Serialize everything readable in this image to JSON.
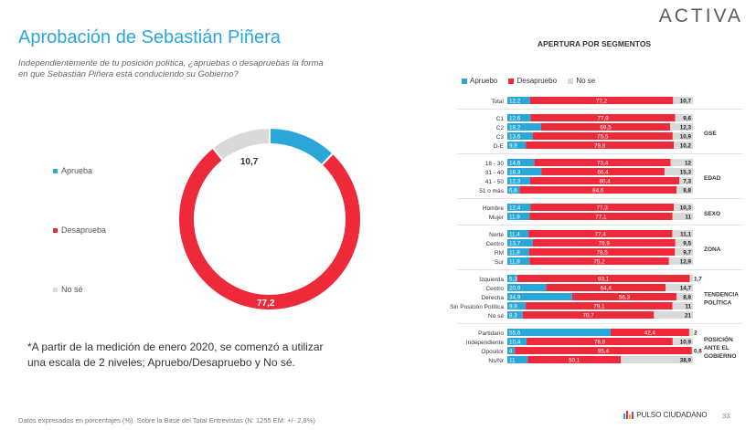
{
  "brand": "ACTIVA",
  "title": "Aprobación de Sebastián Piñera",
  "subtitle": "Independientemente de tu posición política, ¿apruebas o desapruebas la forma en que Sebastián Piñera está conduciendo su Gobierno?",
  "note": "*A partir de la medición de enero 2020, se comenzó a utilizar una escala de 2 niveles; Apruebo/Desapruebo y No sé.",
  "footer_note": "Datos expresados en porcentajes (%). Sobre la Base del Total Entrevistas (N: 1255  EM: +/- 2,8%)",
  "pulso_label": "PULSO CIUDADANO",
  "page_number": "33",
  "colors": {
    "approve": "#2aa7d8",
    "disapprove": "#ee2a3a",
    "nose": "#d9d9d9",
    "title": "#2aa7d8"
  },
  "chart_data": [
    {
      "type": "pie",
      "donut": true,
      "legend": [
        "Aprueba",
        "Desaprueba",
        "No sé"
      ],
      "values": [
        12.2,
        77.2,
        10.7
      ],
      "labels": [
        "12,2",
        "77,2",
        "10,7"
      ]
    },
    {
      "type": "bar",
      "stacked": true,
      "orientation": "horizontal",
      "title": "APERTURA POR SEGMENTOS",
      "legend": [
        "Apruebo",
        "Desapruebo",
        "No se"
      ],
      "groups": [
        {
          "name": "",
          "rows": [
            {
              "label": "Total",
              "values": [
                12.2,
                77.2,
                10.7
              ],
              "text": [
                "12,2",
                "77,2",
                "10,7"
              ]
            }
          ]
        },
        {
          "name": "GSE",
          "rows": [
            {
              "label": "C1",
              "values": [
                12.6,
                77.9,
                9.6
              ],
              "text": [
                "12,6",
                "77,9",
                "9,6"
              ]
            },
            {
              "label": "C2",
              "values": [
                18.2,
                69.5,
                12.3
              ],
              "text": [
                "18,2",
                "69,5",
                "12,3"
              ]
            },
            {
              "label": "C3",
              "values": [
                13.6,
                75.5,
                10.9
              ],
              "text": [
                "13,6",
                "75,5",
                "10,9"
              ]
            },
            {
              "label": "D-E",
              "values": [
                9.9,
                79.8,
                10.2
              ],
              "text": [
                "9,9",
                "79,8",
                "10,2"
              ]
            }
          ]
        },
        {
          "name": "EDAD",
          "rows": [
            {
              "label": "18 - 30",
              "values": [
                14.6,
                73.4,
                12
              ],
              "text": [
                "14,6",
                "73,4",
                "12"
              ]
            },
            {
              "label": "31 - 40",
              "values": [
                18.3,
                66.4,
                15.3
              ],
              "text": [
                "18,3",
                "66,4",
                "15,3"
              ]
            },
            {
              "label": "41 - 50",
              "values": [
                12.3,
                80.4,
                7.3
              ],
              "text": [
                "12,3",
                "80,4",
                "7,3"
              ]
            },
            {
              "label": "51 o más",
              "values": [
                6.6,
                84.6,
                8.8
              ],
              "text": [
                "6,6",
                "84,6",
                "8,8"
              ]
            }
          ]
        },
        {
          "name": "SEXO",
          "rows": [
            {
              "label": "Hombre",
              "values": [
                12.4,
                77.3,
                10.3
              ],
              "text": [
                "12,4",
                "77,3",
                "10,3"
              ]
            },
            {
              "label": "Mujer",
              "values": [
                11.9,
                77.1,
                11
              ],
              "text": [
                "11,9",
                "77,1",
                "11"
              ]
            }
          ]
        },
        {
          "name": "ZONA",
          "rows": [
            {
              "label": "Norte",
              "values": [
                11.4,
                77.4,
                11.1
              ],
              "text": [
                "11,4",
                "77,4",
                "11,1"
              ]
            },
            {
              "label": "Centro",
              "values": [
                13.7,
                76.9,
                9.5
              ],
              "text": [
                "13,7",
                "76,9",
                "9,5"
              ]
            },
            {
              "label": "RM",
              "values": [
                11.8,
                78.5,
                9.7
              ],
              "text": [
                "11,8",
                "78,5",
                "9,7"
              ]
            },
            {
              "label": "Sur",
              "values": [
                11.9,
                75.2,
                12.9
              ],
              "text": [
                "11,9",
                "75,2",
                "12,9"
              ]
            }
          ]
        },
        {
          "name": "TENDENCIA POLÍTICA",
          "rows": [
            {
              "label": "Izquierda",
              "values": [
                5.3,
                93.1,
                1.7
              ],
              "text": [
                "5,3",
                "93,1",
                "1,7"
              ]
            },
            {
              "label": "Centro",
              "values": [
                20.9,
                64.4,
                14.7
              ],
              "text": [
                "20,9",
                "64,4",
                "14,7"
              ]
            },
            {
              "label": "Derecha",
              "values": [
                34.9,
                56.3,
                8.8
              ],
              "text": [
                "34,9",
                "56,3",
                "8,8"
              ]
            },
            {
              "label": "Sin Posición Política",
              "values": [
                9.9,
                79.1,
                11
              ],
              "text": [
                "9,9",
                "79,1",
                "11"
              ]
            },
            {
              "label": "No sé",
              "values": [
                8.3,
                70.7,
                21
              ],
              "text": [
                "8,3",
                "70,7",
                "21"
              ]
            }
          ]
        },
        {
          "name": "POSICIÓN ANTE EL GOBIERNO",
          "rows": [
            {
              "label": "Partidario",
              "values": [
                55.6,
                42.4,
                2
              ],
              "text": [
                "55,6",
                "42,4",
                "2"
              ]
            },
            {
              "label": "Independiente",
              "values": [
                10.4,
                78.8,
                10.9
              ],
              "text": [
                "10,4",
                "78,8",
                "10,9"
              ]
            },
            {
              "label": "Opositor",
              "values": [
                4,
                95.4,
                0.6
              ],
              "text": [
                "4",
                "95,4",
                "0,6"
              ]
            },
            {
              "label": "Ns/Nr",
              "values": [
                11,
                50.1,
                38.9
              ],
              "text": [
                "11",
                "50,1",
                "38,9"
              ]
            }
          ]
        }
      ]
    }
  ]
}
